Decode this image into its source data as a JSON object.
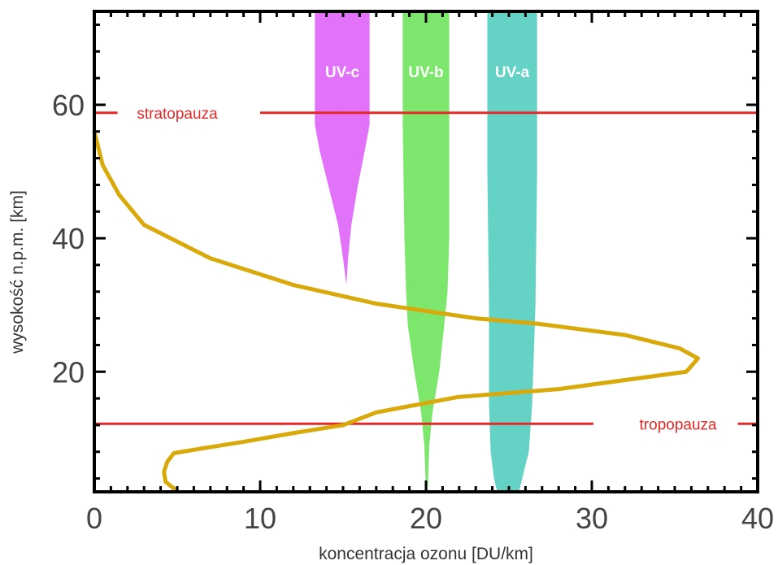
{
  "chart_data": {
    "type": "line",
    "title": "",
    "xlabel": "koncentracja ozonu [DU/km]",
    "ylabel": "wysokość n.p.m. [km]",
    "xlim": [
      0,
      40
    ],
    "ylim": [
      2,
      74
    ],
    "xticks": [
      0,
      10,
      20,
      30,
      40
    ],
    "yticks": [
      20,
      40,
      60
    ],
    "grid": false,
    "series": [
      {
        "color": "#d9a80a",
        "points": [
          [
            4.9,
            2.3
          ],
          [
            4.3,
            3.5
          ],
          [
            4.2,
            5.0
          ],
          [
            4.4,
            6.5
          ],
          [
            4.8,
            7.8
          ],
          [
            6.5,
            8.5
          ],
          [
            9.0,
            9.5
          ],
          [
            12.0,
            10.8
          ],
          [
            15.0,
            12.0
          ],
          [
            17.0,
            13.9
          ],
          [
            21.9,
            16.2
          ],
          [
            28.0,
            17.4
          ],
          [
            35.7,
            20.0
          ],
          [
            36.4,
            22.0
          ],
          [
            35.3,
            23.5
          ],
          [
            32.0,
            25.5
          ],
          [
            26.7,
            27.2
          ],
          [
            23.0,
            28.0
          ],
          [
            17.0,
            30.2
          ],
          [
            12.0,
            33.0
          ],
          [
            7.0,
            37.0
          ],
          [
            3.0,
            42.0
          ],
          [
            1.5,
            46.5
          ],
          [
            0.5,
            51.0
          ],
          [
            0.0,
            56.0
          ]
        ]
      }
    ],
    "bands": [
      {
        "label": "UV-c",
        "color": "#e172f9",
        "label_y": 65,
        "profile": [
          [
            74.0,
            13.3,
            16.6
          ],
          [
            57.0,
            13.3,
            16.6
          ],
          [
            53.0,
            13.6,
            16.3
          ],
          [
            48.0,
            14.1,
            15.9
          ],
          [
            42.0,
            14.7,
            15.5
          ],
          [
            37.0,
            15.0,
            15.3
          ],
          [
            33.0,
            15.2,
            15.2
          ]
        ]
      },
      {
        "label": "UV-b",
        "color": "#7de66c",
        "label_y": 65,
        "profile": [
          [
            74.0,
            18.6,
            21.4
          ],
          [
            57.0,
            18.6,
            21.4
          ],
          [
            40.0,
            18.7,
            21.4
          ],
          [
            32.0,
            18.8,
            21.3
          ],
          [
            27.0,
            18.9,
            21.1
          ],
          [
            20.0,
            19.3,
            20.8
          ],
          [
            14.0,
            19.7,
            20.4
          ],
          [
            9.0,
            19.9,
            20.2
          ],
          [
            2.0,
            20.0,
            20.1
          ]
        ]
      },
      {
        "label": "UV-a",
        "color": "#64d2c4",
        "label_y": 65,
        "profile": [
          [
            74.0,
            23.7,
            26.7
          ],
          [
            50.0,
            23.7,
            26.7
          ],
          [
            30.0,
            23.8,
            26.6
          ],
          [
            15.0,
            23.8,
            26.4
          ],
          [
            8.0,
            23.9,
            26.2
          ],
          [
            4.0,
            24.1,
            25.8
          ],
          [
            2.0,
            24.3,
            25.6
          ]
        ]
      }
    ],
    "reference_lines": [
      {
        "label": "stratopauza",
        "y": 58.8,
        "color": "#e62828",
        "label_x": 5.0,
        "gap": [
          1.4,
          10.0
        ]
      },
      {
        "label": "tropopauza",
        "y": 12.2,
        "color": "#e62828",
        "label_x": 35.2,
        "gap": [
          30.1,
          38.8
        ]
      }
    ]
  }
}
